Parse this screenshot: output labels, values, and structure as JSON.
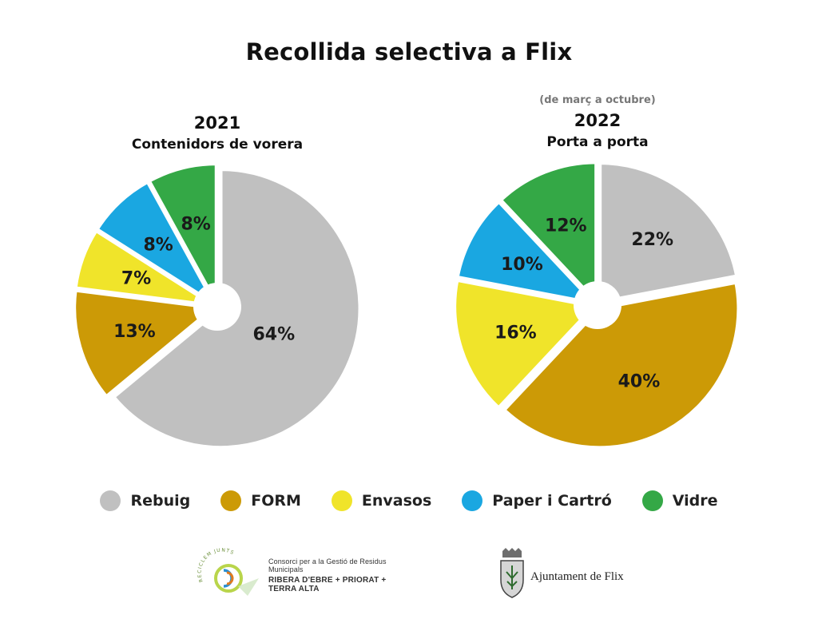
{
  "title": "Recollida selectiva a Flix",
  "categories": [
    "Rebuig",
    "FORM",
    "Envasos",
    "Paper i Cartró",
    "Vidre"
  ],
  "colors": {
    "Rebuig": "#c0c0c0",
    "FORM": "#cc9a06",
    "Envasos": "#f0e42a",
    "Paper i Cartró": "#1aa7e1",
    "Vidre": "#34a846"
  },
  "chart_data": [
    {
      "type": "pie",
      "note": "",
      "title": "2021",
      "subtitle": "Contenidors de vorera",
      "start_category": "Rebuig",
      "direction": "clockwise",
      "slices": [
        {
          "label": "Rebuig",
          "value": 64,
          "text": "64%"
        },
        {
          "label": "FORM",
          "value": 13,
          "text": "13%"
        },
        {
          "label": "Envasos",
          "value": 7,
          "text": "7%"
        },
        {
          "label": "Paper i Cartró",
          "value": 8,
          "text": "8%"
        },
        {
          "label": "Vidre",
          "value": 8,
          "text": "8%"
        }
      ]
    },
    {
      "type": "pie",
      "note": "(de març a octubre)",
      "title": "2022",
      "subtitle": "Porta a porta",
      "start_category": "Rebuig",
      "direction": "clockwise",
      "slices": [
        {
          "label": "Rebuig",
          "value": 22,
          "text": "22%"
        },
        {
          "label": "FORM",
          "value": 40,
          "text": "40%"
        },
        {
          "label": "Envasos",
          "value": 16,
          "text": "16%"
        },
        {
          "label": "Paper i Cartró",
          "value": 10,
          "text": "10%"
        },
        {
          "label": "Vidre",
          "value": 12,
          "text": "12%"
        }
      ]
    }
  ],
  "legend": {
    "placement": "bottom",
    "items": [
      "Rebuig",
      "FORM",
      "Envasos",
      "Paper i Cartró",
      "Vidre"
    ]
  },
  "logos": {
    "consorci": {
      "arc_text": "RECICLEM JUNTS",
      "line1": "Consorci per a la Gestió de Residus Municipals",
      "line2": "RIBERA D'EBRE + PRIORAT + TERRA ALTA"
    },
    "ajuntament": {
      "text": "Ajuntament de Flix"
    }
  }
}
